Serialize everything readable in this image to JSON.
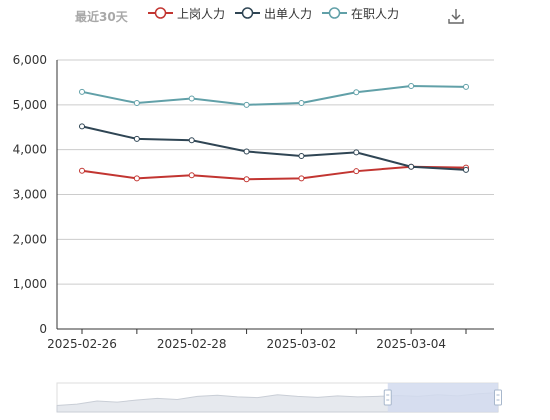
{
  "header": {
    "range_label": "最近30天"
  },
  "icons": {
    "download": "download-icon"
  },
  "colors": {
    "axis": "#333333",
    "grid": "#cccccc",
    "label": "#333333",
    "dataZoomFill": "#d2dbee",
    "dataZoomHandle": "#a7b7cc"
  },
  "chart_data": {
    "type": "line",
    "x": [
      "2025-02-26",
      "2025-02-27",
      "2025-02-28",
      "2025-03-01",
      "2025-03-02",
      "2025-03-03",
      "2025-03-04",
      "2025-03-05"
    ],
    "x_tick_labels": [
      "2025-02-26",
      "2025-02-28",
      "2025-03-02",
      "2025-03-04"
    ],
    "ylim": [
      0,
      6000
    ],
    "y_ticks": [
      0,
      1000,
      2000,
      3000,
      4000,
      5000,
      6000
    ],
    "y_tick_labels": [
      "0",
      "1,000",
      "2,000",
      "3,000",
      "4,000",
      "5,000",
      "6,000"
    ],
    "grid": true,
    "legend_position": "top",
    "series": [
      {
        "name": "上岗人力",
        "color": "#c23531",
        "values": [
          3530,
          3360,
          3430,
          3340,
          3360,
          3520,
          3620,
          3600
        ]
      },
      {
        "name": "出单人力",
        "color": "#2f4554",
        "values": [
          4520,
          4240,
          4210,
          3960,
          3860,
          3940,
          3620,
          3550
        ]
      },
      {
        "name": "在职人力",
        "color": "#61a0a8",
        "values": [
          5290,
          5040,
          5140,
          5000,
          5040,
          5280,
          5420,
          5400
        ]
      }
    ],
    "data_zoom": {
      "start_percent": 75,
      "end_percent": 100
    }
  }
}
